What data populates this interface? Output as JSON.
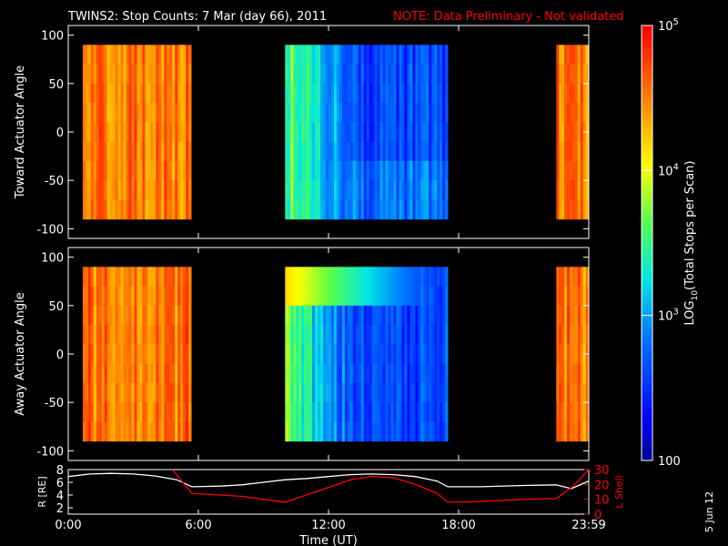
{
  "header": {
    "title": "TWINS2: Stop Counts:  7 Mar (day  66), 2011",
    "note": "NOTE: Data Preliminary - Not validated",
    "note_color": "#ff0000"
  },
  "side_label": "5 Jun 12",
  "colorbar": {
    "label": "LOG10(Total Stops per Scan)",
    "ticks": [
      "10^5",
      "10^4",
      "10^3",
      "100"
    ],
    "range": [
      100,
      100000
    ],
    "scale": "log"
  },
  "chart_data": [
    {
      "type": "heatmap",
      "ylabel": "Toward Actuator Angle",
      "ylim": [
        -110,
        110
      ],
      "y_ticks": [
        -100,
        -50,
        0,
        50,
        100
      ],
      "x_range_hours": [
        0,
        24
      ],
      "angle_range": [
        -90,
        90
      ],
      "data_blocks": [
        {
          "start": "0:40",
          "end": "5:40",
          "level": "high (~10^4.6)"
        },
        {
          "start": "10:00",
          "end": "17:30",
          "level": "medium-low (~10^2.8 - 10^4)"
        },
        {
          "start": "22:30",
          "end": "23:59",
          "level": "high (~10^4.5)"
        }
      ]
    },
    {
      "type": "heatmap",
      "ylabel": "Away Actuator Angle",
      "ylim": [
        -110,
        110
      ],
      "y_ticks": [
        -100,
        -50,
        0,
        50,
        100
      ],
      "x_range_hours": [
        0,
        24
      ],
      "angle_range": [
        -90,
        90
      ],
      "data_blocks": [
        {
          "start": "0:40",
          "end": "5:40",
          "level": "high (~10^4.6)"
        },
        {
          "start": "10:00",
          "end": "17:30",
          "level": "medium-low (~10^2.8 - 10^4)"
        },
        {
          "start": "22:30",
          "end": "23:59",
          "level": "high (~10^4.5)"
        }
      ]
    },
    {
      "type": "line",
      "xlabel": "Time (UT)",
      "x_ticks": [
        "0:00",
        "6:00",
        "12:00",
        "18:00",
        "23:59"
      ],
      "x_tick_hours": [
        0,
        6,
        12,
        18,
        24
      ],
      "ylabel_left": "R [RE]",
      "ylim_left": [
        1,
        8
      ],
      "y_ticks_left": [
        2,
        4,
        6,
        8
      ],
      "ylabel_right": "L Shell",
      "ylim_right": [
        0,
        30
      ],
      "y_ticks_right": [
        0,
        10,
        20,
        30
      ],
      "series": [
        {
          "color": "#ffffff",
          "axis": "left",
          "x": [
            0,
            1,
            2,
            3,
            4,
            5,
            5.7,
            7,
            8,
            9,
            10,
            11,
            12,
            13,
            14,
            15,
            16,
            17,
            17.5,
            19,
            21,
            22.5,
            23.2,
            24
          ],
          "y": [
            6.9,
            7.3,
            7.4,
            7.3,
            7.0,
            6.4,
            5.3,
            5.4,
            5.6,
            6.0,
            6.4,
            6.6,
            6.9,
            7.2,
            7.3,
            7.2,
            6.9,
            6.2,
            5.3,
            5.3,
            5.5,
            5.6,
            5.0,
            6.2
          ]
        },
        {
          "color": "#ff0000",
          "axis": "right",
          "x": [
            4.8,
            5.7,
            8,
            10,
            12,
            13,
            14,
            15,
            16,
            17,
            17.5,
            19,
            21,
            22.5,
            23.3,
            24
          ],
          "y": [
            30,
            14,
            12,
            8,
            18,
            23,
            25.5,
            24.5,
            20,
            14,
            8,
            8.5,
            10,
            10.5,
            19,
            30
          ]
        }
      ]
    }
  ]
}
